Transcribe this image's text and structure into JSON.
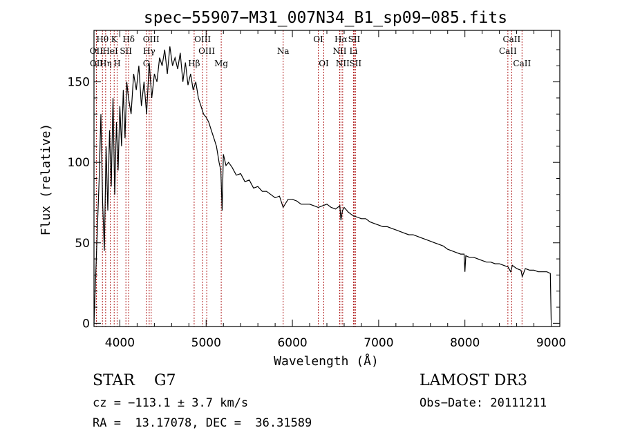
{
  "chart_data": {
    "type": "line",
    "title": "spec−55907−M31_007N34_B1_sp09−085.fits",
    "xlabel": "Wavelength (Å)",
    "ylabel": "Flux (relative)",
    "xlim": [
      3700,
      9100
    ],
    "ylim": [
      -2,
      182
    ],
    "xticks": [
      4000,
      5000,
      6000,
      7000,
      8000,
      9000
    ],
    "yticks": [
      0,
      50,
      100,
      150
    ],
    "series": [
      {
        "name": "flux",
        "x": [
          3700,
          3720,
          3740,
          3760,
          3780,
          3800,
          3820,
          3840,
          3860,
          3880,
          3900,
          3920,
          3940,
          3960,
          3980,
          4000,
          4020,
          4040,
          4060,
          4080,
          4100,
          4130,
          4160,
          4190,
          4220,
          4250,
          4280,
          4310,
          4340,
          4370,
          4400,
          4430,
          4460,
          4490,
          4520,
          4550,
          4580,
          4610,
          4640,
          4670,
          4700,
          4730,
          4760,
          4790,
          4820,
          4850,
          4880,
          4910,
          4940,
          4970,
          5000,
          5030,
          5060,
          5090,
          5120,
          5150,
          5170,
          5185,
          5200,
          5230,
          5260,
          5300,
          5350,
          5400,
          5450,
          5500,
          5550,
          5600,
          5650,
          5700,
          5750,
          5800,
          5850,
          5893,
          5950,
          6000,
          6050,
          6100,
          6150,
          6200,
          6250,
          6300,
          6350,
          6400,
          6450,
          6500,
          6550,
          6563,
          6580,
          6600,
          6650,
          6700,
          6750,
          6800,
          6850,
          6900,
          6950,
          7000,
          7050,
          7100,
          7150,
          7200,
          7250,
          7300,
          7350,
          7400,
          7450,
          7500,
          7550,
          7600,
          7650,
          7700,
          7750,
          7800,
          7850,
          7900,
          7950,
          7990,
          8000,
          8010,
          8050,
          8100,
          8150,
          8200,
          8250,
          8300,
          8350,
          8400,
          8450,
          8500,
          8530,
          8550,
          8600,
          8650,
          8665,
          8700,
          8750,
          8800,
          8850,
          8900,
          8950,
          8990,
          9000
        ],
        "y": [
          0,
          30,
          60,
          90,
          130,
          75,
          45,
          110,
          70,
          120,
          85,
          140,
          80,
          125,
          95,
          135,
          110,
          145,
          115,
          150,
          140,
          130,
          155,
          145,
          160,
          135,
          150,
          130,
          162,
          140,
          155,
          150,
          165,
          160,
          170,
          155,
          172,
          160,
          165,
          158,
          168,
          150,
          162,
          148,
          155,
          145,
          150,
          140,
          135,
          130,
          128,
          125,
          120,
          115,
          110,
          100,
          95,
          70,
          105,
          98,
          100,
          97,
          92,
          93,
          88,
          89,
          84,
          85,
          82,
          82,
          80,
          78,
          79,
          72,
          77,
          77,
          76,
          74,
          74,
          74,
          73,
          72,
          73,
          74,
          72,
          71,
          73,
          64,
          70,
          72,
          69,
          67,
          66,
          65,
          65,
          63,
          62,
          61,
          60,
          60,
          59,
          58,
          57,
          56,
          55,
          55,
          54,
          53,
          52,
          51,
          50,
          49,
          48,
          46,
          45,
          44,
          43,
          43,
          32,
          42,
          41,
          41,
          40,
          39,
          38,
          38,
          37,
          37,
          36,
          35,
          32,
          36,
          34,
          33,
          29,
          34,
          33,
          33,
          32,
          32,
          32,
          31,
          2
        ]
      }
    ],
    "spectral_lines": [
      {
        "label": "Hθ",
        "wl": 3798,
        "row": 0
      },
      {
        "label": "K",
        "wl": 3934,
        "row": 0
      },
      {
        "label": "Hδ",
        "wl": 4102,
        "row": 0
      },
      {
        "label": "OIII",
        "wl": 4363,
        "row": 0
      },
      {
        "label": "OIII",
        "wl": 4959,
        "row": 0
      },
      {
        "label": "OI",
        "wl": 6300,
        "row": 0
      },
      {
        "label": "Hα",
        "wl": 6563,
        "row": 0
      },
      {
        "label": "SII",
        "wl": 6716,
        "row": 0
      },
      {
        "label": "CaII",
        "wl": 8542,
        "row": 0
      },
      {
        "label": "OII",
        "wl": 3727,
        "row": 1
      },
      {
        "label": "HeI",
        "wl": 3889,
        "row": 1
      },
      {
        "label": "SII",
        "wl": 4070,
        "row": 1
      },
      {
        "label": "Hγ",
        "wl": 4340,
        "row": 1
      },
      {
        "label": "OIII",
        "wl": 5007,
        "row": 1
      },
      {
        "label": "Na",
        "wl": 5893,
        "row": 1
      },
      {
        "label": "NII",
        "wl": 6548,
        "row": 1
      },
      {
        "label": "Li",
        "wl": 6708,
        "row": 1
      },
      {
        "label": "CaII",
        "wl": 8498,
        "row": 1
      },
      {
        "label": "OII",
        "wl": 3729,
        "row": 2
      },
      {
        "label": "Hη",
        "wl": 3835,
        "row": 2
      },
      {
        "label": "H",
        "wl": 3968,
        "row": 2
      },
      {
        "label": "G",
        "wl": 4305,
        "row": 2
      },
      {
        "label": "Hβ",
        "wl": 4861,
        "row": 2
      },
      {
        "label": "Mg",
        "wl": 5175,
        "row": 2
      },
      {
        "label": "OI",
        "wl": 6364,
        "row": 2
      },
      {
        "label": "NII",
        "wl": 6583,
        "row": 2
      },
      {
        "label": "SII",
        "wl": 6731,
        "row": 2
      },
      {
        "label": "CaII",
        "wl": 8662,
        "row": 2
      }
    ]
  },
  "info": {
    "class": "STAR    G7",
    "survey": "LAMOST DR3",
    "cz": "cz = −113.1 ± 3.7 km/s",
    "obs_date": "Obs−Date: 20111211",
    "radec": "RA =  13.17078, DEC =  36.31589"
  }
}
